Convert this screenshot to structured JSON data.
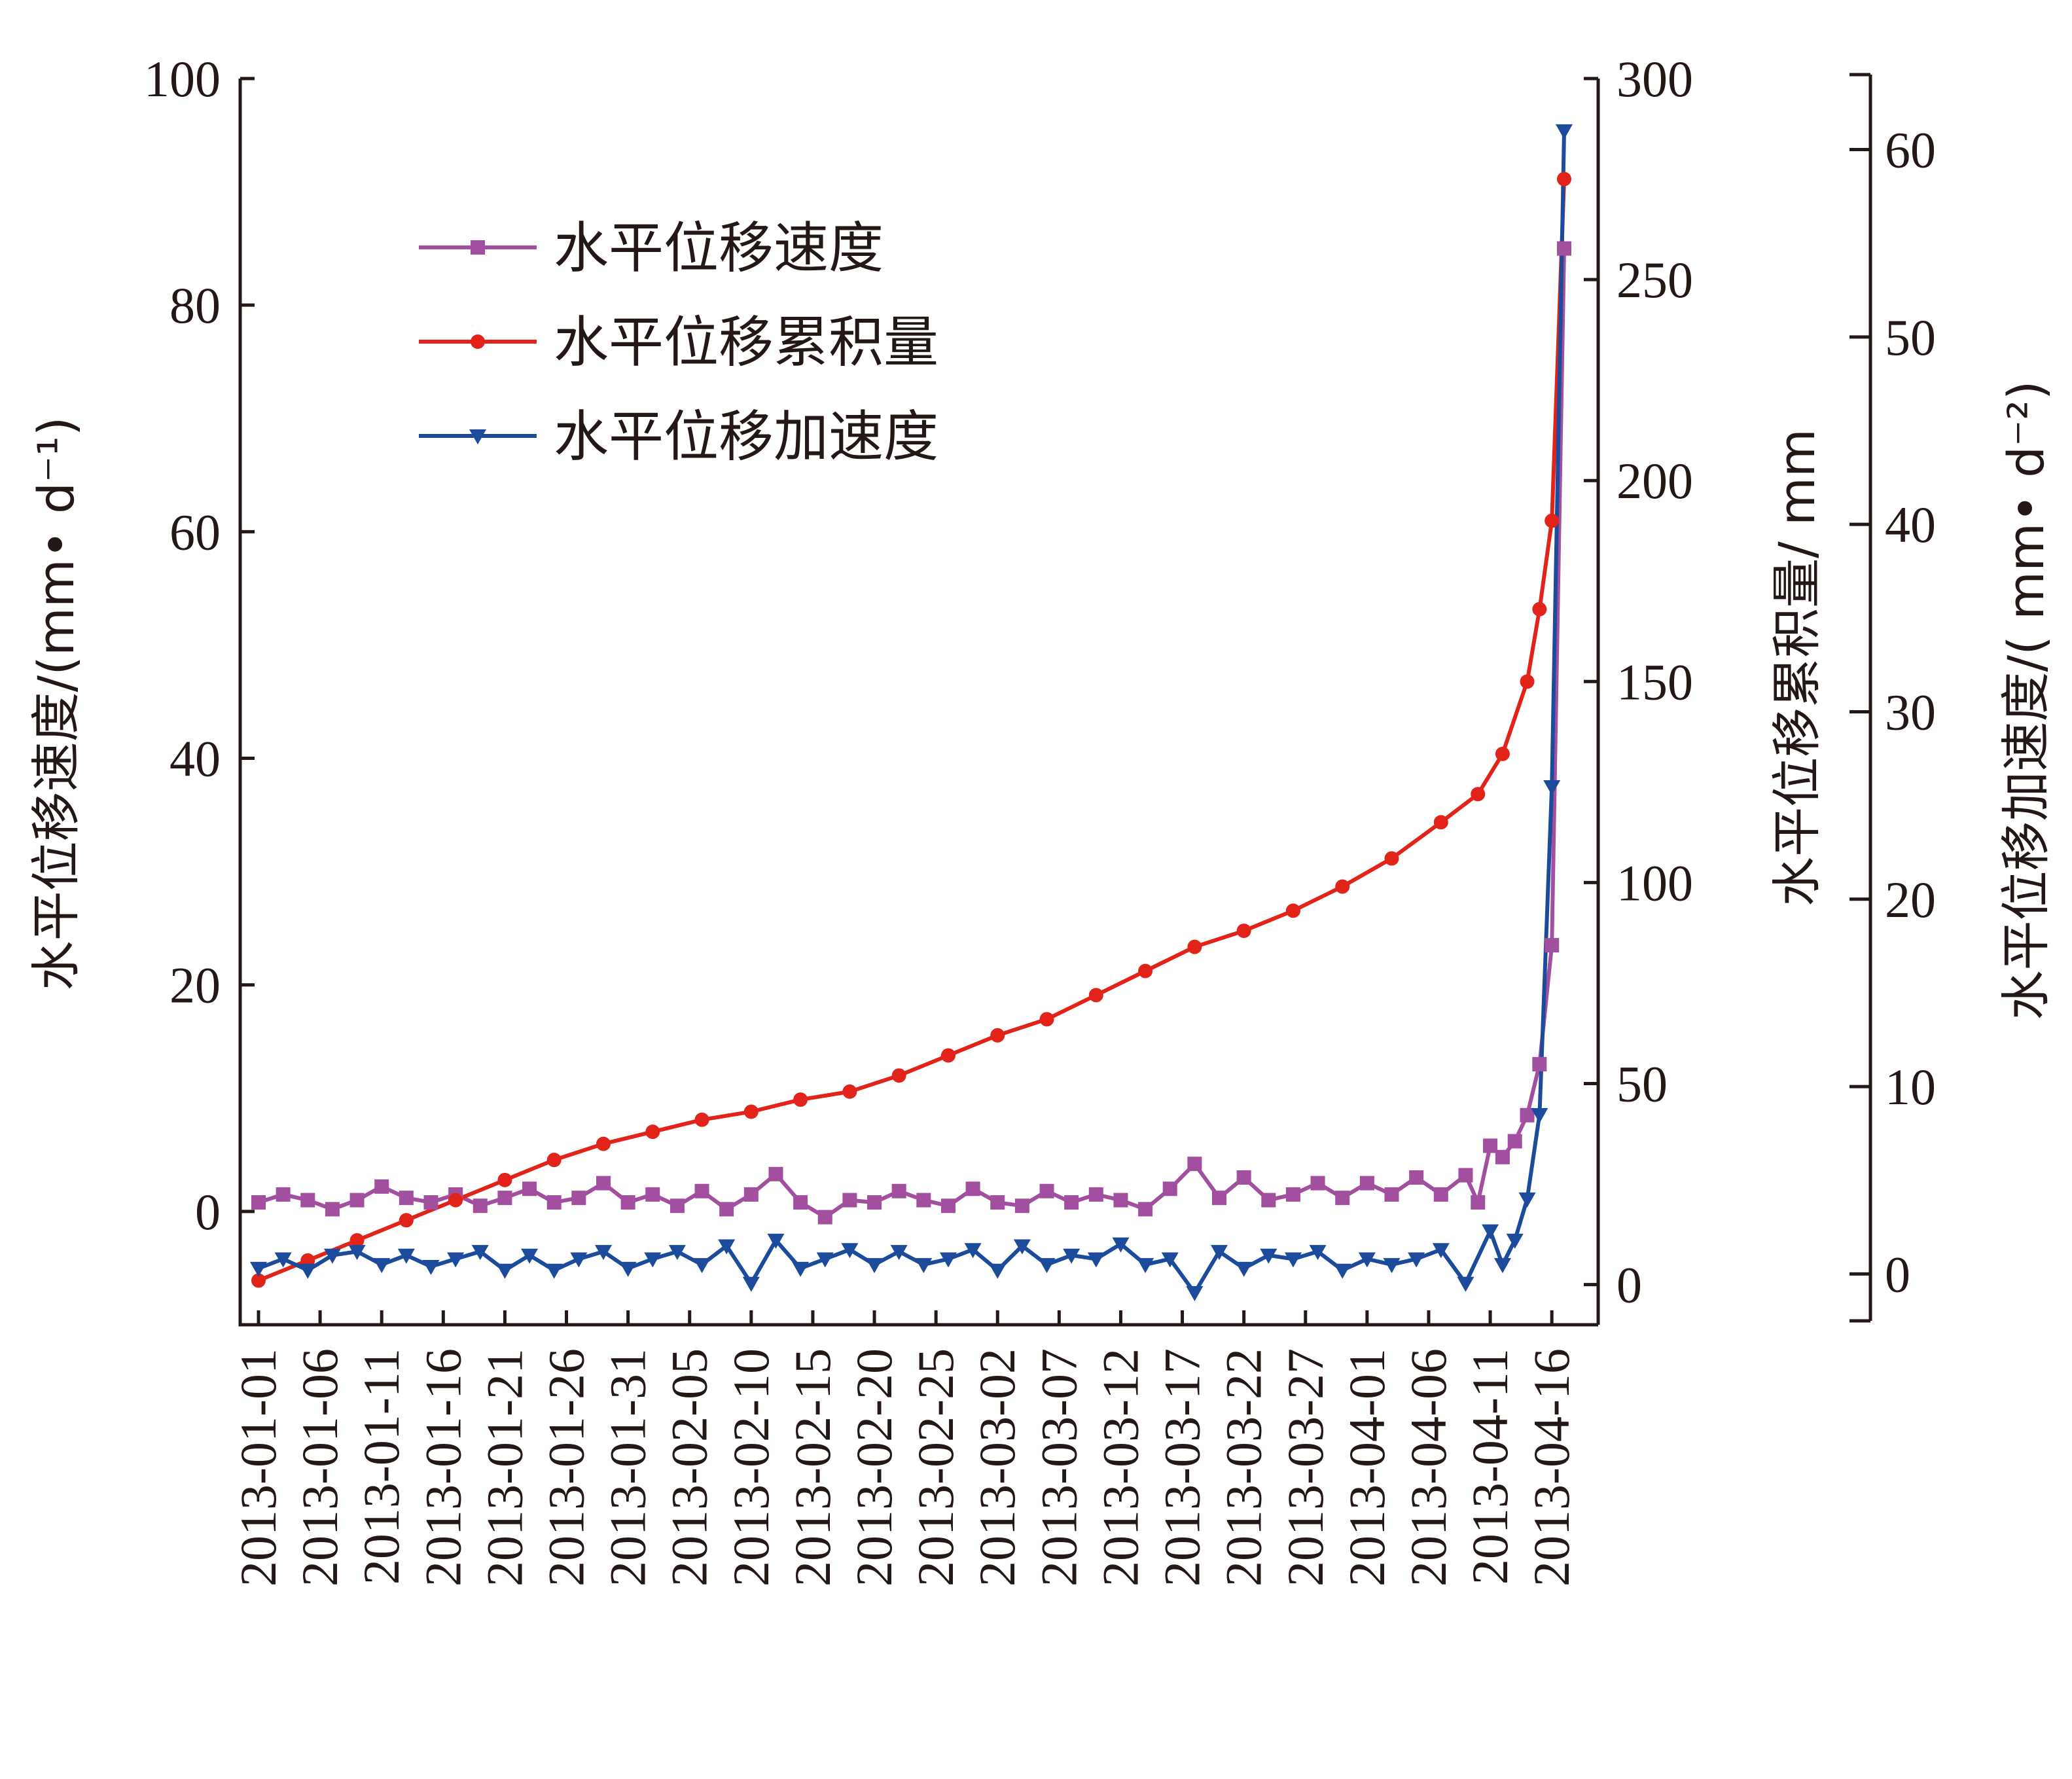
{
  "chart_data": {
    "type": "line",
    "x_type": "date",
    "x_tick_labels": [
      "2013-01-01",
      "2013-01-06",
      "2013-01-11",
      "2013-01-16",
      "2013-01-21",
      "2013-01-26",
      "2013-01-31",
      "2013-02-05",
      "2013-02-10",
      "2013-02-15",
      "2013-02-20",
      "2013-02-25",
      "2013-03-02",
      "2013-03-07",
      "2013-03-12",
      "2013-03-17",
      "2013-03-22",
      "2013-03-27",
      "2013-04-01",
      "2013-04-06",
      "2013-04-11",
      "2013-04-16"
    ],
    "x_range": [
      "2013-01-01",
      "2013-04-17"
    ],
    "axes": {
      "left": {
        "label": "水平位移速度/(mm• d⁻¹)",
        "range": [
          -10,
          100
        ],
        "ticks": [
          0,
          20,
          40,
          60,
          80,
          100
        ]
      },
      "right1": {
        "label": "水平位移累积量/ mm",
        "range": [
          -10,
          300
        ],
        "ticks": [
          0,
          50,
          100,
          150,
          200,
          250,
          300
        ]
      },
      "right2": {
        "label": "水平位移加速度/( mm• d⁻²)",
        "range": [
          -2.5,
          64
        ],
        "ticks": [
          0,
          10,
          20,
          30,
          40,
          50,
          60
        ]
      }
    },
    "legend_position": "top-left",
    "grid": false,
    "series": [
      {
        "name": "水平位移速度",
        "axis": "left",
        "color": "#a14f9e",
        "marker": "square",
        "x": [
          "2013-01-01",
          "2013-01-03",
          "2013-01-05",
          "2013-01-07",
          "2013-01-09",
          "2013-01-11",
          "2013-01-13",
          "2013-01-15",
          "2013-01-17",
          "2013-01-19",
          "2013-01-21",
          "2013-01-23",
          "2013-01-25",
          "2013-01-27",
          "2013-01-29",
          "2013-01-31",
          "2013-02-02",
          "2013-02-04",
          "2013-02-06",
          "2013-02-08",
          "2013-02-10",
          "2013-02-12",
          "2013-02-14",
          "2013-02-16",
          "2013-02-18",
          "2013-02-20",
          "2013-02-22",
          "2013-02-24",
          "2013-02-26",
          "2013-02-28",
          "2013-03-02",
          "2013-03-04",
          "2013-03-06",
          "2013-03-08",
          "2013-03-10",
          "2013-03-12",
          "2013-03-14",
          "2013-03-16",
          "2013-03-18",
          "2013-03-20",
          "2013-03-22",
          "2013-03-24",
          "2013-03-26",
          "2013-03-28",
          "2013-03-30",
          "2013-04-01",
          "2013-04-03",
          "2013-04-05",
          "2013-04-07",
          "2013-04-09",
          "2013-04-10",
          "2013-04-11",
          "2013-04-12",
          "2013-04-13",
          "2013-04-14",
          "2013-04-15",
          "2013-04-16",
          "2013-04-17"
        ],
        "values": [
          0.8,
          1.5,
          1.0,
          0.2,
          1.0,
          2.2,
          1.2,
          0.8,
          1.5,
          0.5,
          1.2,
          2.0,
          0.8,
          1.2,
          2.5,
          0.8,
          1.5,
          0.5,
          1.8,
          0.2,
          1.5,
          3.3,
          0.8,
          -0.5,
          1.0,
          0.8,
          1.8,
          1.0,
          0.5,
          2.0,
          0.8,
          0.5,
          1.8,
          0.8,
          1.5,
          1.0,
          0.2,
          2.0,
          4.2,
          1.2,
          3.0,
          1.0,
          1.5,
          2.5,
          1.2,
          2.5,
          1.5,
          3.0,
          1.5,
          3.2,
          0.8,
          5.8,
          4.8,
          6.2,
          8.5,
          13.0,
          23.5,
          85.0
        ]
      },
      {
        "name": "水平位移累积量",
        "axis": "right1",
        "color": "#e2231a",
        "marker": "circle",
        "x": [
          "2013-01-01",
          "2013-01-05",
          "2013-01-09",
          "2013-01-13",
          "2013-01-17",
          "2013-01-21",
          "2013-01-25",
          "2013-01-29",
          "2013-02-02",
          "2013-02-06",
          "2013-02-10",
          "2013-02-14",
          "2013-02-18",
          "2013-02-22",
          "2013-02-26",
          "2013-03-02",
          "2013-03-06",
          "2013-03-10",
          "2013-03-14",
          "2013-03-18",
          "2013-03-22",
          "2013-03-26",
          "2013-03-30",
          "2013-04-03",
          "2013-04-07",
          "2013-04-10",
          "2013-04-12",
          "2013-04-14",
          "2013-04-15",
          "2013-04-16",
          "2013-04-17"
        ],
        "values": [
          1,
          6,
          11,
          16,
          21,
          26,
          31,
          35,
          38,
          41,
          43,
          46,
          48,
          52,
          57,
          62,
          66,
          72,
          78,
          84,
          88,
          93,
          99,
          106,
          115,
          122,
          132,
          150,
          168,
          190,
          275
        ]
      },
      {
        "name": "水平位移加速度",
        "axis": "right2",
        "color": "#1b4b9a",
        "marker": "triangle-down",
        "x": [
          "2013-01-01",
          "2013-01-03",
          "2013-01-05",
          "2013-01-07",
          "2013-01-09",
          "2013-01-11",
          "2013-01-13",
          "2013-01-15",
          "2013-01-17",
          "2013-01-19",
          "2013-01-21",
          "2013-01-23",
          "2013-01-25",
          "2013-01-27",
          "2013-01-29",
          "2013-01-31",
          "2013-02-02",
          "2013-02-04",
          "2013-02-06",
          "2013-02-08",
          "2013-02-10",
          "2013-02-12",
          "2013-02-14",
          "2013-02-16",
          "2013-02-18",
          "2013-02-20",
          "2013-02-22",
          "2013-02-24",
          "2013-02-26",
          "2013-02-28",
          "2013-03-02",
          "2013-03-04",
          "2013-03-06",
          "2013-03-08",
          "2013-03-10",
          "2013-03-12",
          "2013-03-14",
          "2013-03-16",
          "2013-03-18",
          "2013-03-20",
          "2013-03-22",
          "2013-03-24",
          "2013-03-26",
          "2013-03-28",
          "2013-03-30",
          "2013-04-01",
          "2013-04-03",
          "2013-04-05",
          "2013-04-07",
          "2013-04-09",
          "2013-04-11",
          "2013-04-12",
          "2013-04-13",
          "2013-04-14",
          "2013-04-15",
          "2013-04-16",
          "2013-04-17"
        ],
        "values": [
          0.3,
          0.8,
          0.2,
          1.0,
          1.2,
          0.5,
          1.0,
          0.4,
          0.8,
          1.2,
          0.2,
          1.0,
          0.2,
          0.8,
          1.2,
          0.3,
          0.8,
          1.2,
          0.5,
          1.5,
          -0.5,
          1.8,
          0.3,
          0.8,
          1.3,
          0.5,
          1.2,
          0.5,
          0.8,
          1.3,
          0.2,
          1.5,
          0.5,
          1.0,
          0.8,
          1.6,
          0.5,
          0.8,
          -1.0,
          1.2,
          0.3,
          1.0,
          0.8,
          1.2,
          0.2,
          0.8,
          0.5,
          0.8,
          1.3,
          -0.5,
          2.3,
          0.5,
          1.8,
          4.0,
          8.5,
          26.0,
          61.0
        ]
      }
    ]
  }
}
